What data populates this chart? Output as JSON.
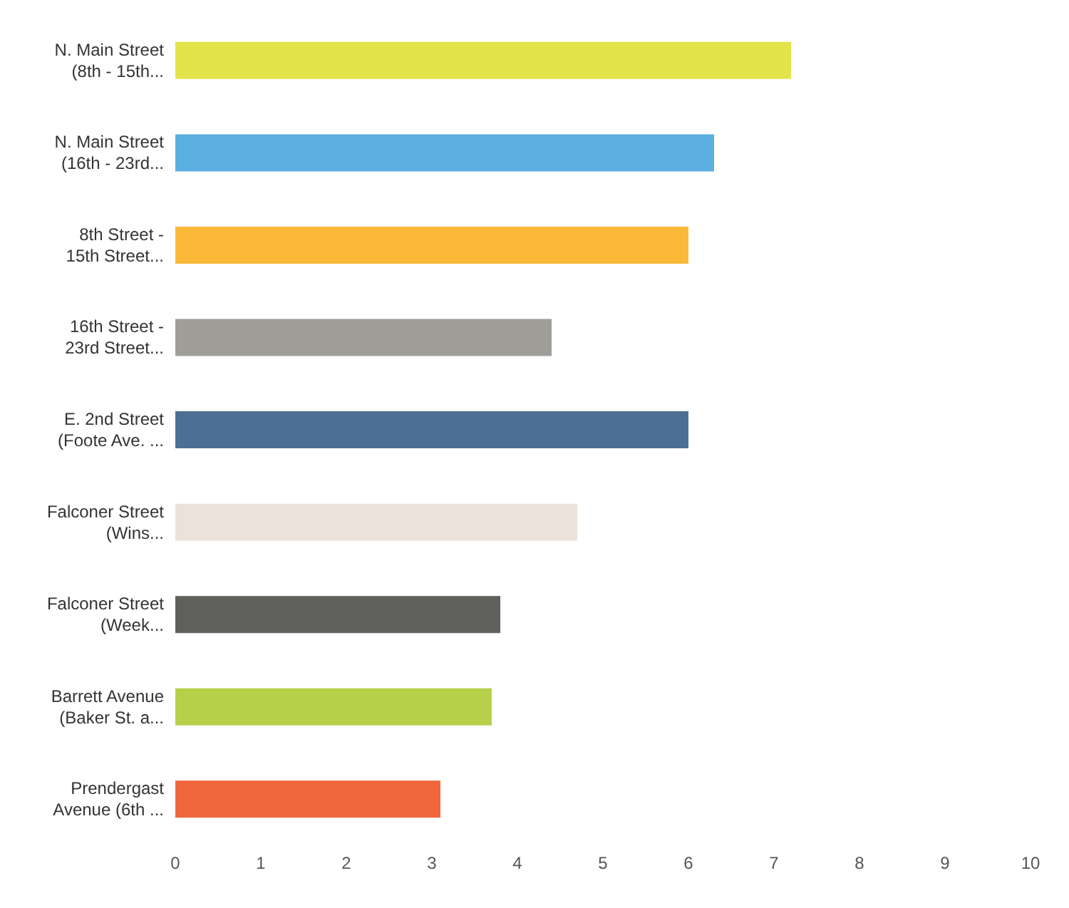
{
  "chart_data": {
    "type": "bar",
    "orientation": "horizontal",
    "categories": [
      "N. Main Street (8th - 15th...",
      "N. Main Street (16th - 23rd...",
      "8th Street - 15th Street...",
      "16th Street - 23rd Street...",
      "E. 2nd Street (Foote Ave. ...",
      "Falconer Street (Wins...",
      "Falconer Street (Week...",
      "Barrett Avenue (Baker St. a...",
      "Prendergast Avenue (6th ..."
    ],
    "values": [
      7.2,
      6.3,
      6.0,
      4.4,
      6.0,
      4.7,
      3.8,
      3.7,
      3.1
    ],
    "colors": [
      "#e3e34a",
      "#5aafe0",
      "#fbb93a",
      "#a09e98",
      "#4c7093",
      "#ebe3da",
      "#5f5f5b",
      "#b7d04a",
      "#f0663d"
    ],
    "xlim": [
      0,
      10
    ],
    "xticks": [
      0,
      1,
      2,
      3,
      4,
      5,
      6,
      7,
      8,
      9,
      10
    ],
    "grid": false,
    "legend": false
  }
}
